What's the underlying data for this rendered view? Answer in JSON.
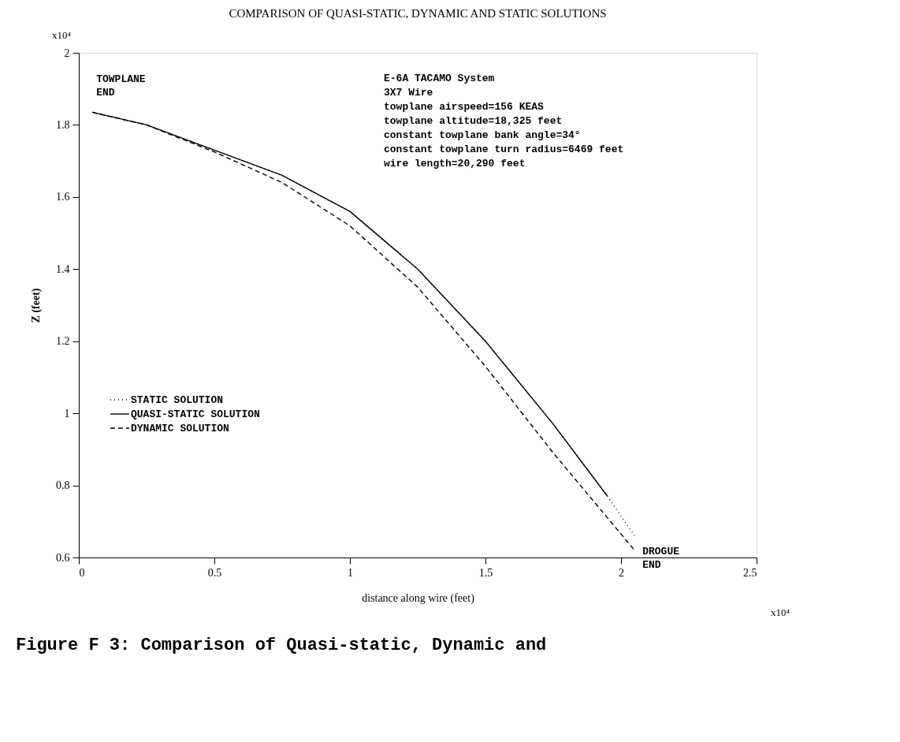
{
  "chart_data": {
    "type": "line",
    "title": "COMPARISON OF QUASI-STATIC, DYNAMIC AND STATIC SOLUTIONS",
    "xlabel": "distance along wire (feet)",
    "ylabel": "Z (feet)",
    "xlim": [
      0,
      2.5
    ],
    "xticks": [
      0,
      0.5,
      1,
      1.5,
      2,
      2.5
    ],
    "ylim": [
      0.6,
      2
    ],
    "yticks": [
      0.6,
      0.8,
      1,
      1.2,
      1.4,
      1.6,
      1.8,
      2
    ],
    "grid": false,
    "legend": "bottom left",
    "series": [
      {
        "name": "STATIC SOLUTION",
        "color": "#000000",
        "line_style": "dotted",
        "x": [
          0.05,
          0.25,
          0.5,
          0.75,
          1.0,
          1.25,
          1.5,
          1.75,
          1.95,
          2.05
        ],
        "values": [
          1.835,
          1.8,
          1.73,
          1.66,
          1.56,
          1.4,
          1.2,
          0.97,
          0.77,
          0.66
        ]
      },
      {
        "name": "QUASI-STATIC SOLUTION",
        "color": "#000000",
        "line_style": "solid",
        "x": [
          0.05,
          0.25,
          0.5,
          0.75,
          1.0,
          1.25,
          1.5,
          1.75,
          1.95
        ],
        "values": [
          1.835,
          1.8,
          1.73,
          1.66,
          1.56,
          1.4,
          1.2,
          0.97,
          0.77
        ]
      },
      {
        "name": "DYNAMIC SOLUTION",
        "color": "#000000",
        "line_style": "dashed",
        "x": [
          0.05,
          0.25,
          0.5,
          0.75,
          1.0,
          1.25,
          1.5,
          1.75,
          2.05
        ],
        "values": [
          1.835,
          1.8,
          1.725,
          1.64,
          1.52,
          1.35,
          1.13,
          0.89,
          0.62
        ]
      }
    ],
    "annotations": [
      "x10⁴",
      "x10⁴",
      "E-6A TACAMO System",
      "3X7 Wire",
      "towplane airspeed=156 KEAS",
      "towplane altitude=18,325 feet",
      "constant towplane bank angle=34°",
      "constant towplane turn radius=6469 feet",
      "wire length=20,290 feet",
      "Figure F 3:  Comparison of Quasi-static, Dynamic and",
      {
        "text": "TOWPLANE END",
        "x": 0.05,
        "y": 1.835
      },
      {
        "text": "DROGUE END",
        "x": 2.05,
        "y": 0.62
      }
    ]
  }
}
